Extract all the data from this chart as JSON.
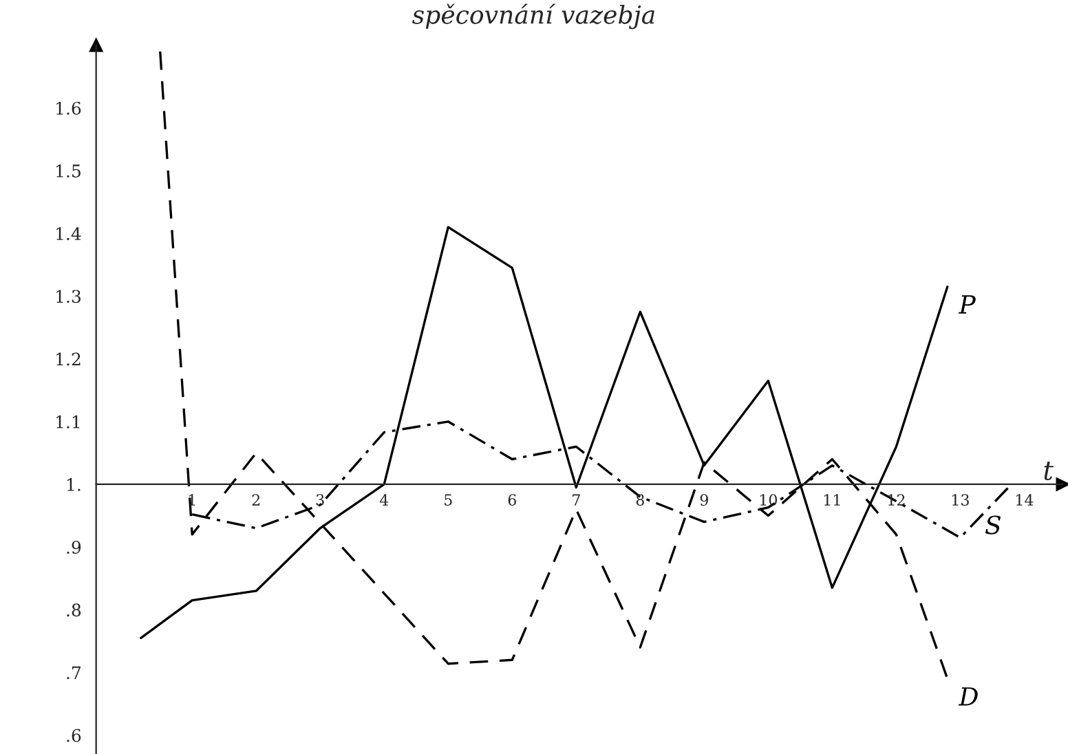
{
  "chart_data": {
    "type": "line",
    "title": "spěcovnání vazebja",
    "xlabel": "t",
    "xlim": [
      -0.5,
      14.6
    ],
    "ylim": [
      0.57,
      1.7
    ],
    "xticks": [
      1,
      2,
      3,
      4,
      5,
      6,
      7,
      8,
      9,
      10,
      11,
      12,
      13,
      14
    ],
    "yticks": [
      {
        "value": 0.6,
        "label": ".6"
      },
      {
        "value": 0.7,
        "label": ".7"
      },
      {
        "value": 0.8,
        "label": ".8"
      },
      {
        "value": 0.9,
        "label": ".9"
      },
      {
        "value": 1,
        "label": "1."
      },
      1.1,
      1.2,
      1.3,
      1.4,
      1.5,
      1.6
    ],
    "grid": false,
    "marker": "none",
    "series": [
      {
        "name": "P",
        "color": "#000000",
        "line_style": "solid",
        "x": [
          0.2,
          1,
          2,
          3,
          4,
          5,
          6,
          7,
          8,
          9,
          10,
          11,
          12,
          12.8
        ],
        "values": [
          0.755,
          0.815,
          0.83,
          0.93,
          1.0,
          1.41,
          1.345,
          0.995,
          1.275,
          1.03,
          1.165,
          0.835,
          1.06,
          1.315
        ]
      },
      {
        "name": "S",
        "color": "#000000",
        "line_style": "dashdot",
        "x": [
          1,
          2,
          3,
          4,
          5,
          6,
          7,
          8,
          9,
          10,
          11,
          12,
          13,
          13.8
        ],
        "values": [
          0.952,
          0.93,
          0.967,
          1.083,
          1.1,
          1.04,
          1.06,
          0.98,
          0.94,
          0.963,
          1.03,
          0.973,
          0.915,
          1.0
        ]
      },
      {
        "name": "D",
        "color": "#000000",
        "line_style": "dashed",
        "x": [
          0.5,
          1,
          2,
          5,
          6,
          7,
          8,
          9,
          10,
          11,
          12,
          12.8
        ],
        "values": [
          1.69,
          0.92,
          1.05,
          0.714,
          0.72,
          0.96,
          0.74,
          1.035,
          0.95,
          1.04,
          0.92,
          0.69
        ]
      }
    ]
  }
}
